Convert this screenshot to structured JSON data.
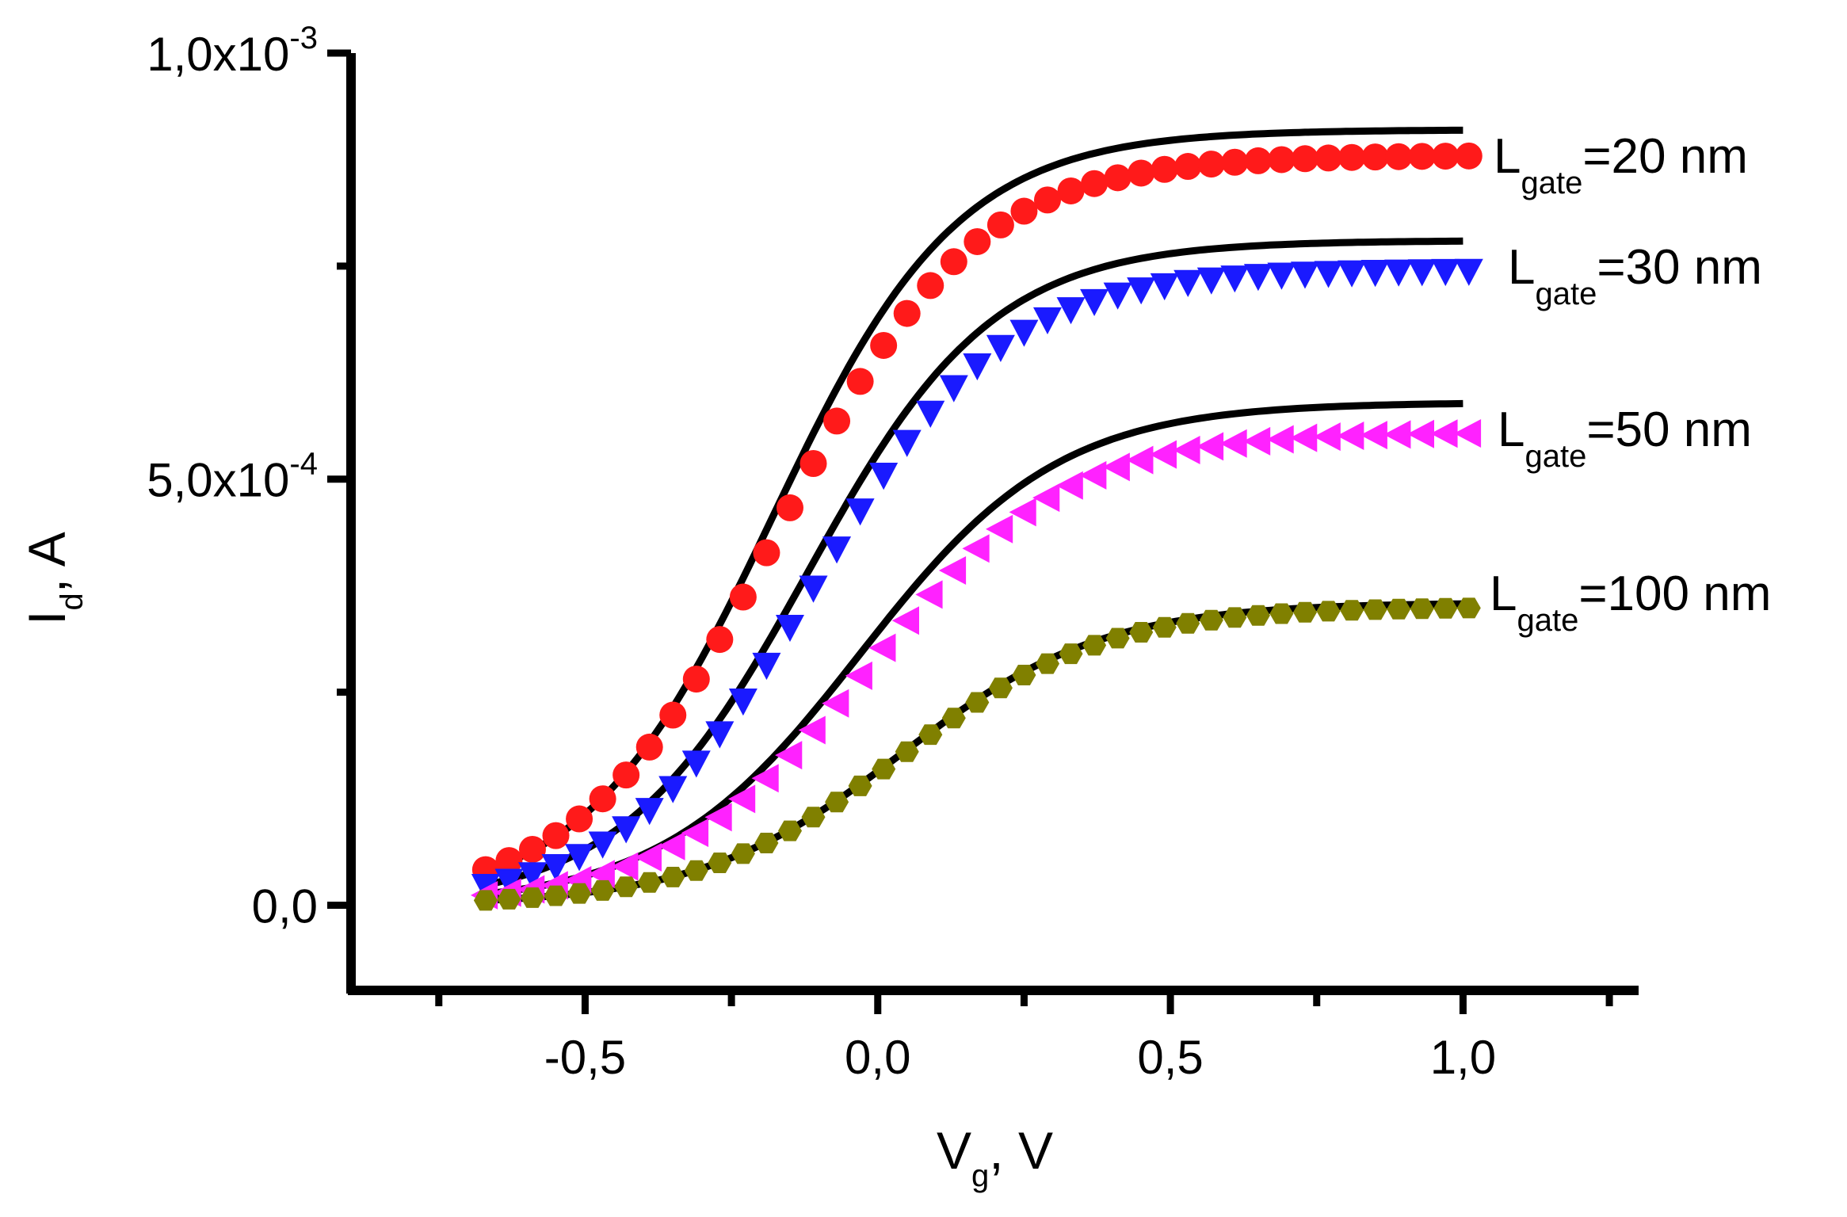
{
  "chart_data": {
    "type": "line",
    "title": "",
    "xlabel": {
      "main": "V",
      "sub": "g",
      "rest": ", V"
    },
    "ylabel": {
      "main": "I",
      "sub": "d",
      "rest": ", A"
    },
    "xlim": [
      -0.9,
      1.3
    ],
    "ylim": [
      -0.0001,
      0.001
    ],
    "x_ticks": [
      {
        "value": -0.5,
        "label": "-0,5"
      },
      {
        "value": 0.0,
        "label": "0,0"
      },
      {
        "value": 0.5,
        "label": "0,5"
      },
      {
        "value": 1.0,
        "label": "1,0"
      }
    ],
    "x_minor_ticks": [
      -0.75,
      -0.25,
      0.25,
      0.75,
      1.25
    ],
    "y_ticks": [
      {
        "value": 0.0,
        "mantissa": "0,0",
        "exponent": ""
      },
      {
        "value": 0.0005,
        "mantissa": "5,0x10",
        "exponent": "-4"
      },
      {
        "value": 0.001,
        "mantissa": "1,0x10",
        "exponent": "-3"
      }
    ],
    "y_minor_ticks": [
      0.00025,
      0.00075
    ],
    "grid": false,
    "series": [
      {
        "label_main": "L",
        "label_sub": "gate",
        "label_rest": "=20 nm",
        "marker": "circle",
        "color": "#ff1a1a",
        "sim": {
          "vth": -0.18,
          "k": 6.3,
          "imax": 0.00091
        },
        "meas": {
          "vth": -0.17,
          "k": 6.0,
          "imax": 0.00088
        }
      },
      {
        "label_main": "L",
        "label_sub": "gate",
        "label_rest": "=30 nm",
        "marker": "triangle-down",
        "color": "#1a1aff",
        "sim": {
          "vth": -0.12,
          "k": 6.3,
          "imax": 0.00078
        },
        "meas": {
          "vth": -0.11,
          "k": 6.2,
          "imax": 0.000745
        }
      },
      {
        "label_main": "L",
        "label_sub": "gate",
        "label_rest": "=50 nm",
        "marker": "triangle-left",
        "color": "#ff22ff",
        "sim": {
          "vth": -0.03,
          "k": 5.9,
          "imax": 0.00059
        },
        "meas": {
          "vth": -0.02,
          "k": 5.9,
          "imax": 0.000555
        }
      },
      {
        "label_main": "L",
        "label_sub": "gate",
        "label_rest": "=100 nm",
        "marker": "hexagon",
        "color": "#808000",
        "sim": {
          "vth": 0.04,
          "k": 5.8,
          "imax": 0.000355
        },
        "meas": {
          "vth": 0.04,
          "k": 5.8,
          "imax": 0.00035
        }
      }
    ],
    "x_start": -0.67,
    "x_end": 1.0,
    "sim_step": 0.01,
    "meas_step": 0.04
  }
}
